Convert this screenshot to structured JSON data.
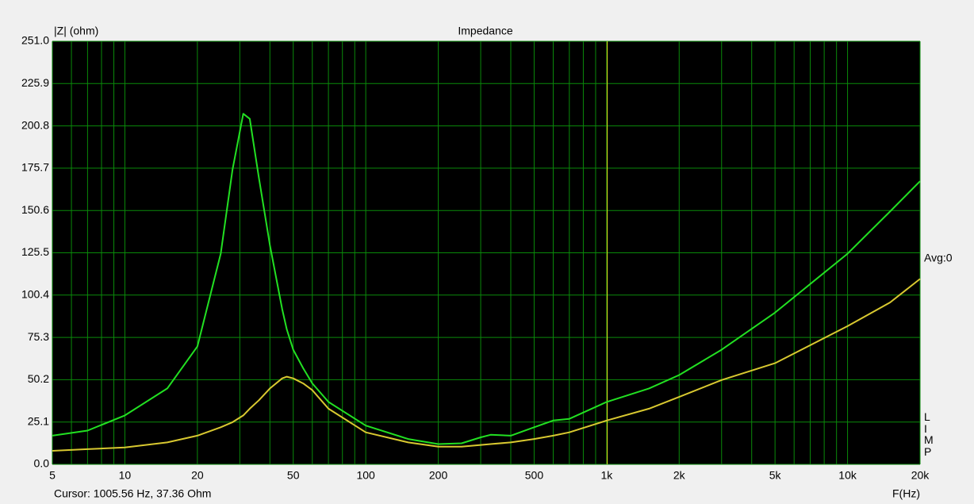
{
  "chart_data": {
    "type": "line",
    "title": "Impedance",
    "ylabel": "|Z| (ohm)",
    "xlabel": "F(Hz)",
    "cursor_text": "Cursor: 1005.56 Hz, 37.36 Ohm",
    "avg_text": "Avg:0",
    "side_label": "LIMP",
    "cursor_x": 1005.56,
    "cursor_color": "#e8e820",
    "log_x": true,
    "grid": true,
    "grid_color": "#0a8a0a",
    "background": "#000000",
    "xlim": [
      5,
      20000
    ],
    "ylim": [
      0,
      251
    ],
    "xticks": [
      5,
      10,
      20,
      50,
      100,
      200,
      500,
      {
        "value": 1000,
        "label": "1k"
      },
      {
        "value": 2000,
        "label": "2k"
      },
      {
        "value": 5000,
        "label": "5k"
      },
      {
        "value": 10000,
        "label": "10k"
      },
      {
        "value": 20000,
        "label": "20k"
      }
    ],
    "xgrid_minor": [
      6,
      7,
      8,
      9,
      30,
      40,
      60,
      70,
      80,
      90,
      300,
      400,
      600,
      700,
      800,
      900,
      3000,
      4000,
      6000,
      7000,
      8000,
      9000
    ],
    "yticks": [
      {
        "value": 0,
        "label": "0.0"
      },
      25.1,
      50.2,
      75.3,
      100.4,
      125.5,
      150.6,
      175.7,
      200.8,
      225.9,
      {
        "value": 251,
        "label": "251.0"
      }
    ],
    "x": [
      5,
      7,
      10,
      15,
      20,
      25,
      28,
      31,
      33,
      36,
      40,
      45,
      47,
      50,
      55,
      60,
      70,
      100,
      150,
      200,
      250,
      300,
      330,
      400,
      500,
      600,
      700,
      1000,
      1500,
      2000,
      3000,
      5000,
      10000,
      15000,
      20000
    ],
    "series": [
      {
        "color": "#22e022",
        "values": [
          17,
          20,
          29,
          45,
          70,
          125,
          175,
          208,
          205,
          170,
          130,
          92,
          80,
          68,
          57,
          48,
          37,
          23,
          15,
          12,
          12.5,
          16,
          17.5,
          17,
          22,
          26,
          27,
          37,
          45,
          53,
          68,
          90,
          125,
          150,
          168
        ]
      },
      {
        "color": "#d8c830",
        "values": [
          8,
          9,
          10,
          13,
          17,
          22,
          25,
          29,
          33,
          38,
          45,
          51,
          52,
          51,
          48,
          44,
          33,
          19,
          13,
          10.5,
          10.5,
          11.5,
          12,
          13,
          15,
          17,
          19,
          26,
          33,
          40,
          50,
          60,
          82,
          96,
          110
        ]
      }
    ]
  }
}
